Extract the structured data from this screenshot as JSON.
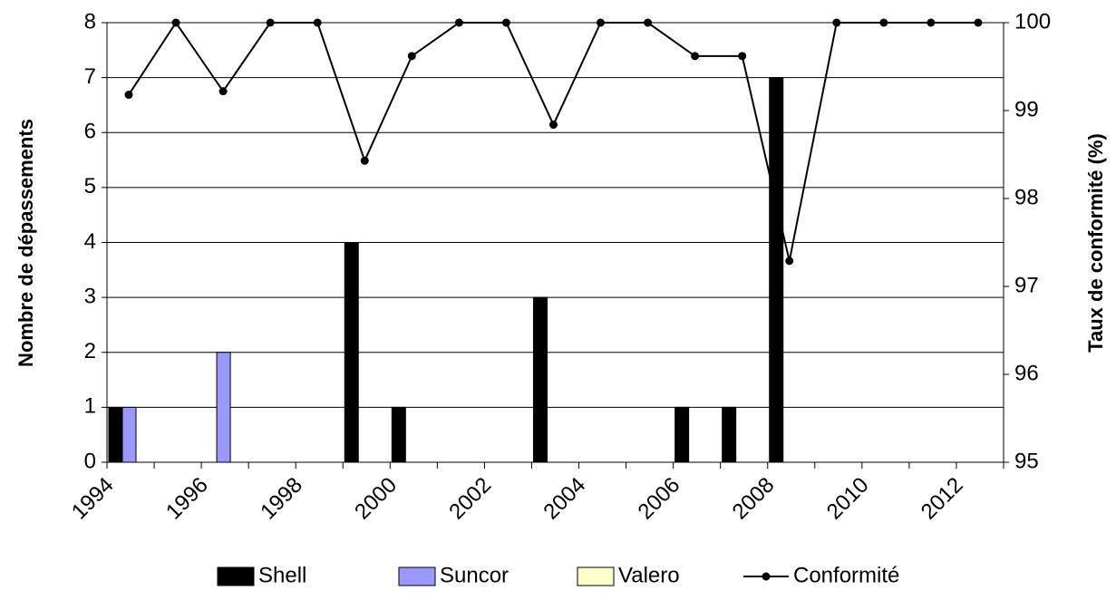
{
  "chart_data": {
    "type": "bar",
    "y_label": "Nombre de dépassements",
    "y2_label": "Taux de conformité (%)",
    "categories": [
      "1994",
      null,
      "1996",
      null,
      "1998",
      null,
      "2000",
      null,
      "2002",
      null,
      "2004",
      null,
      "2006",
      null,
      "2008",
      null,
      "2010",
      null,
      "2012"
    ],
    "series": [
      {
        "name": "Shell",
        "color": "#000000",
        "values": [
          1,
          0,
          0,
          0,
          0,
          4,
          1,
          0,
          0,
          3,
          0,
          0,
          1,
          1,
          7,
          0,
          0,
          0,
          0
        ]
      },
      {
        "name": "Suncor",
        "color": "#9999ff",
        "values": [
          1,
          0,
          2,
          0,
          0,
          0,
          0,
          0,
          0,
          0,
          0,
          0,
          0,
          0,
          0,
          0,
          0,
          0,
          0
        ]
      },
      {
        "name": "Valero",
        "color": "#ffffcc",
        "values": [
          0,
          0,
          0,
          0,
          0,
          0,
          0,
          0,
          0,
          0,
          0,
          0,
          0,
          0,
          0,
          0,
          0,
          0,
          0
        ]
      },
      {
        "name": "Conformité",
        "type": "line",
        "axis": "y2",
        "color": "#000000",
        "values": [
          99.18,
          100,
          99.22,
          100,
          100,
          98.43,
          99.62,
          100,
          100,
          98.84,
          100,
          100,
          99.62,
          99.62,
          97.29,
          100,
          100,
          100,
          100
        ]
      }
    ],
    "ylim": [
      0,
      8
    ],
    "yticks": [
      0,
      1,
      2,
      3,
      4,
      5,
      6,
      7,
      8
    ],
    "y2lim": [
      95,
      100
    ],
    "y2ticks": [
      95,
      96,
      97,
      98,
      99,
      100
    ],
    "grid": true,
    "legend": "bottom"
  }
}
